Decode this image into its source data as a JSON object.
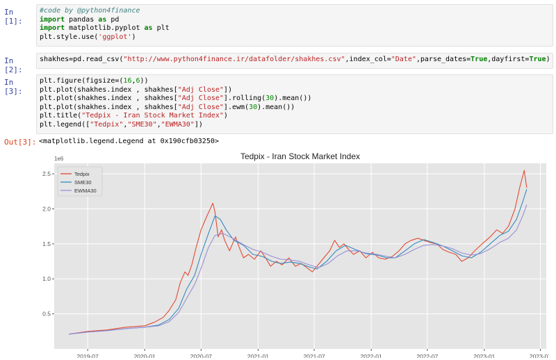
{
  "cells": [
    {
      "prompt": "In [1]:",
      "lines": [
        [
          {
            "t": "#code by @python4finance",
            "c": "cm"
          }
        ],
        [
          {
            "t": "import",
            "c": "kw"
          },
          {
            "t": " pandas "
          },
          {
            "t": "as",
            "c": "kw"
          },
          {
            "t": " pd"
          }
        ],
        [
          {
            "t": "import",
            "c": "kw"
          },
          {
            "t": " matplotlib.pyplot "
          },
          {
            "t": "as",
            "c": "kw"
          },
          {
            "t": " plt"
          }
        ],
        [
          {
            "t": "plt.style.use("
          },
          {
            "t": "'ggplot'",
            "c": "st"
          },
          {
            "t": ")"
          }
        ]
      ]
    },
    {
      "prompt": "In [2]:",
      "lines": [
        [
          {
            "t": "shakhes=pd.read_csv("
          },
          {
            "t": "\"http://www.python4finance.ir/datafolder/shakhes.csv\"",
            "c": "st"
          },
          {
            "t": ",index_col="
          },
          {
            "t": "\"Date\"",
            "c": "st"
          },
          {
            "t": ",parse_dates="
          },
          {
            "t": "True",
            "c": "kw"
          },
          {
            "t": ",dayfirst="
          },
          {
            "t": "True",
            "c": "kw"
          },
          {
            "t": ")"
          }
        ]
      ]
    },
    {
      "prompt": "In [3]:",
      "lines": [
        [
          {
            "t": "plt.figure(figsize=("
          },
          {
            "t": "16",
            "c": "num"
          },
          {
            "t": ","
          },
          {
            "t": "6",
            "c": "num"
          },
          {
            "t": "))"
          }
        ],
        [
          {
            "t": "plt.plot(shakhes.index , shakhes["
          },
          {
            "t": "\"Adj Close\"",
            "c": "st"
          },
          {
            "t": "])"
          }
        ],
        [
          {
            "t": "plt.plot(shakhes.index , shakhes["
          },
          {
            "t": "\"Adj Close\"",
            "c": "st"
          },
          {
            "t": "].rolling("
          },
          {
            "t": "30",
            "c": "num"
          },
          {
            "t": ").mean())"
          }
        ],
        [
          {
            "t": "plt.plot(shakhes.index , shakhes["
          },
          {
            "t": "\"Adj Close\"",
            "c": "st"
          },
          {
            "t": "].ewm("
          },
          {
            "t": "30",
            "c": "num"
          },
          {
            "t": ").mean())"
          }
        ],
        [
          {
            "t": "plt.title("
          },
          {
            "t": "\"Tedpix - Iran Stock Market Index\"",
            "c": "st"
          },
          {
            "t": ")"
          }
        ],
        [
          {
            "t": "plt.legend(["
          },
          {
            "t": "\"Tedpix\"",
            "c": "st"
          },
          {
            "t": ","
          },
          {
            "t": "\"SME30\"",
            "c": "st"
          },
          {
            "t": ","
          },
          {
            "t": "\"EWMA30\"",
            "c": "st"
          },
          {
            "t": "])"
          }
        ]
      ]
    }
  ],
  "output": {
    "prompt": "Out[3]:",
    "text": "<matplotlib.legend.Legend at 0x190cfb03250>"
  },
  "chart_data": {
    "type": "line",
    "title": "Tedpix - Iran Stock Market Index",
    "y_multiplier_label": "1e6",
    "xlabel": "",
    "ylabel": "",
    "grid": true,
    "style": "ggplot",
    "legend_position": "upper left",
    "ylim": [
      0.0,
      2.65
    ],
    "xlim": [
      "2019-03-15",
      "2023-07-20"
    ],
    "x_ticks": [
      "2019-07",
      "2020-01",
      "2020-07",
      "2021-01",
      "2021-07",
      "2022-01",
      "2022-07",
      "2023-01",
      "2023-07"
    ],
    "y_ticks": [
      "0.5",
      "1.0",
      "1.5",
      "2.0",
      "2.5"
    ],
    "y_tick_values": [
      0.5,
      1.0,
      1.5,
      2.0,
      2.5
    ],
    "series": [
      {
        "name": "Tedpix",
        "color": "#E24A33",
        "points": [
          [
            "2019-05-01",
            0.21
          ],
          [
            "2019-06-01",
            0.23
          ],
          [
            "2019-07-01",
            0.25
          ],
          [
            "2019-08-01",
            0.26
          ],
          [
            "2019-09-01",
            0.27
          ],
          [
            "2019-10-01",
            0.29
          ],
          [
            "2019-11-01",
            0.31
          ],
          [
            "2019-12-01",
            0.32
          ],
          [
            "2020-01-01",
            0.33
          ],
          [
            "2020-02-01",
            0.38
          ],
          [
            "2020-03-01",
            0.45
          ],
          [
            "2020-03-20",
            0.55
          ],
          [
            "2020-04-10",
            0.7
          ],
          [
            "2020-04-25",
            0.95
          ],
          [
            "2020-05-10",
            1.1
          ],
          [
            "2020-05-20",
            1.05
          ],
          [
            "2020-06-01",
            1.2
          ],
          [
            "2020-06-15",
            1.45
          ],
          [
            "2020-07-01",
            1.7
          ],
          [
            "2020-07-20",
            1.9
          ],
          [
            "2020-08-08",
            2.08
          ],
          [
            "2020-08-15",
            1.95
          ],
          [
            "2020-08-25",
            1.6
          ],
          [
            "2020-09-05",
            1.7
          ],
          [
            "2020-09-15",
            1.55
          ],
          [
            "2020-10-01",
            1.4
          ],
          [
            "2020-10-20",
            1.6
          ],
          [
            "2020-11-01",
            1.45
          ],
          [
            "2020-11-15",
            1.3
          ],
          [
            "2020-12-01",
            1.35
          ],
          [
            "2020-12-20",
            1.28
          ],
          [
            "2021-01-10",
            1.4
          ],
          [
            "2021-01-25",
            1.3
          ],
          [
            "2021-02-10",
            1.18
          ],
          [
            "2021-03-01",
            1.25
          ],
          [
            "2021-03-20",
            1.2
          ],
          [
            "2021-04-10",
            1.3
          ],
          [
            "2021-05-01",
            1.18
          ],
          [
            "2021-05-20",
            1.22
          ],
          [
            "2021-06-10",
            1.15
          ],
          [
            "2021-06-25",
            1.1
          ],
          [
            "2021-07-10",
            1.18
          ],
          [
            "2021-08-01",
            1.3
          ],
          [
            "2021-08-20",
            1.4
          ],
          [
            "2021-09-05",
            1.55
          ],
          [
            "2021-09-20",
            1.45
          ],
          [
            "2021-10-05",
            1.5
          ],
          [
            "2021-10-20",
            1.42
          ],
          [
            "2021-11-05",
            1.35
          ],
          [
            "2021-11-25",
            1.4
          ],
          [
            "2021-12-15",
            1.3
          ],
          [
            "2022-01-05",
            1.38
          ],
          [
            "2022-01-25",
            1.3
          ],
          [
            "2022-02-15",
            1.28
          ],
          [
            "2022-03-10",
            1.32
          ],
          [
            "2022-04-01",
            1.4
          ],
          [
            "2022-04-20",
            1.5
          ],
          [
            "2022-05-10",
            1.55
          ],
          [
            "2022-06-01",
            1.58
          ],
          [
            "2022-06-20",
            1.55
          ],
          [
            "2022-07-10",
            1.52
          ],
          [
            "2022-08-01",
            1.5
          ],
          [
            "2022-08-20",
            1.42
          ],
          [
            "2022-09-10",
            1.38
          ],
          [
            "2022-10-01",
            1.35
          ],
          [
            "2022-10-20",
            1.25
          ],
          [
            "2022-11-10",
            1.3
          ],
          [
            "2022-12-01",
            1.4
          ],
          [
            "2022-12-25",
            1.5
          ],
          [
            "2023-01-20",
            1.6
          ],
          [
            "2023-02-10",
            1.7
          ],
          [
            "2023-03-01",
            1.65
          ],
          [
            "2023-03-20",
            1.75
          ],
          [
            "2023-04-10",
            2.0
          ],
          [
            "2023-04-25",
            2.3
          ],
          [
            "2023-05-10",
            2.55
          ],
          [
            "2023-05-18",
            2.3
          ]
        ]
      },
      {
        "name": "SME30",
        "color": "#348ABD",
        "points": [
          [
            "2019-05-01",
            0.21
          ],
          [
            "2019-07-01",
            0.24
          ],
          [
            "2019-09-01",
            0.26
          ],
          [
            "2019-11-01",
            0.29
          ],
          [
            "2020-01-01",
            0.31
          ],
          [
            "2020-02-15",
            0.34
          ],
          [
            "2020-03-20",
            0.42
          ],
          [
            "2020-04-20",
            0.58
          ],
          [
            "2020-05-15",
            0.85
          ],
          [
            "2020-06-10",
            1.05
          ],
          [
            "2020-07-01",
            1.35
          ],
          [
            "2020-07-25",
            1.65
          ],
          [
            "2020-08-15",
            1.9
          ],
          [
            "2020-09-01",
            1.85
          ],
          [
            "2020-09-20",
            1.7
          ],
          [
            "2020-10-15",
            1.55
          ],
          [
            "2020-11-15",
            1.48
          ],
          [
            "2020-12-15",
            1.35
          ],
          [
            "2021-01-15",
            1.32
          ],
          [
            "2021-02-15",
            1.25
          ],
          [
            "2021-03-15",
            1.22
          ],
          [
            "2021-04-15",
            1.24
          ],
          [
            "2021-05-15",
            1.22
          ],
          [
            "2021-06-15",
            1.17
          ],
          [
            "2021-07-10",
            1.14
          ],
          [
            "2021-08-10",
            1.25
          ],
          [
            "2021-09-10",
            1.4
          ],
          [
            "2021-10-10",
            1.48
          ],
          [
            "2021-11-10",
            1.42
          ],
          [
            "2021-12-15",
            1.36
          ],
          [
            "2022-01-20",
            1.34
          ],
          [
            "2022-02-20",
            1.3
          ],
          [
            "2022-03-20",
            1.3
          ],
          [
            "2022-04-20",
            1.4
          ],
          [
            "2022-05-20",
            1.5
          ],
          [
            "2022-06-20",
            1.56
          ],
          [
            "2022-07-20",
            1.52
          ],
          [
            "2022-08-20",
            1.47
          ],
          [
            "2022-09-20",
            1.4
          ],
          [
            "2022-10-20",
            1.33
          ],
          [
            "2022-11-20",
            1.3
          ],
          [
            "2022-12-20",
            1.38
          ],
          [
            "2023-01-20",
            1.5
          ],
          [
            "2023-02-20",
            1.62
          ],
          [
            "2023-03-20",
            1.68
          ],
          [
            "2023-04-15",
            1.85
          ],
          [
            "2023-05-05",
            2.1
          ],
          [
            "2023-05-18",
            2.28
          ]
        ]
      },
      {
        "name": "EWMA30",
        "color": "#988ED5",
        "points": [
          [
            "2019-05-01",
            0.21
          ],
          [
            "2019-07-01",
            0.24
          ],
          [
            "2019-09-01",
            0.26
          ],
          [
            "2019-11-01",
            0.29
          ],
          [
            "2020-01-01",
            0.31
          ],
          [
            "2020-02-15",
            0.33
          ],
          [
            "2020-03-20",
            0.39
          ],
          [
            "2020-04-20",
            0.52
          ],
          [
            "2020-05-15",
            0.72
          ],
          [
            "2020-06-10",
            0.92
          ],
          [
            "2020-07-01",
            1.15
          ],
          [
            "2020-07-25",
            1.45
          ],
          [
            "2020-08-15",
            1.62
          ],
          [
            "2020-09-10",
            1.65
          ],
          [
            "2020-10-10",
            1.58
          ],
          [
            "2020-11-10",
            1.5
          ],
          [
            "2020-12-15",
            1.42
          ],
          [
            "2021-01-15",
            1.38
          ],
          [
            "2021-02-15",
            1.32
          ],
          [
            "2021-03-15",
            1.28
          ],
          [
            "2021-04-15",
            1.27
          ],
          [
            "2021-05-15",
            1.25
          ],
          [
            "2021-06-15",
            1.2
          ],
          [
            "2021-07-15",
            1.16
          ],
          [
            "2021-08-15",
            1.22
          ],
          [
            "2021-09-15",
            1.33
          ],
          [
            "2021-10-15",
            1.4
          ],
          [
            "2021-11-15",
            1.4
          ],
          [
            "2021-12-15",
            1.37
          ],
          [
            "2022-01-20",
            1.35
          ],
          [
            "2022-02-20",
            1.32
          ],
          [
            "2022-03-20",
            1.3
          ],
          [
            "2022-04-20",
            1.35
          ],
          [
            "2022-05-20",
            1.42
          ],
          [
            "2022-06-20",
            1.48
          ],
          [
            "2022-07-20",
            1.49
          ],
          [
            "2022-08-20",
            1.47
          ],
          [
            "2022-09-20",
            1.43
          ],
          [
            "2022-10-20",
            1.37
          ],
          [
            "2022-11-20",
            1.34
          ],
          [
            "2022-12-20",
            1.36
          ],
          [
            "2023-01-20",
            1.43
          ],
          [
            "2023-02-20",
            1.52
          ],
          [
            "2023-03-20",
            1.58
          ],
          [
            "2023-04-15",
            1.7
          ],
          [
            "2023-05-05",
            1.9
          ],
          [
            "2023-05-18",
            2.06
          ]
        ]
      }
    ]
  }
}
